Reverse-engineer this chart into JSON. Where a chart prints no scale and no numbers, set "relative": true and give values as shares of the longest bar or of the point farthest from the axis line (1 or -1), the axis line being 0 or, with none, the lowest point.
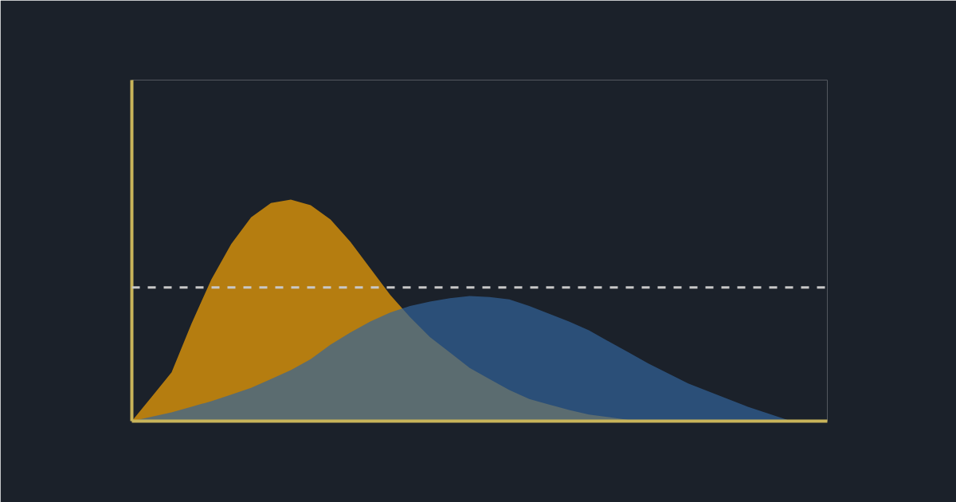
{
  "chart_data": {
    "type": "area",
    "relative": true,
    "categories": [
      null,
      null,
      null,
      null,
      null,
      null,
      null,
      null,
      null,
      null,
      null,
      null,
      null,
      null,
      null,
      null,
      null,
      null,
      null,
      null,
      null,
      null,
      null,
      null,
      null,
      null,
      null,
      null,
      null,
      null,
      null,
      null,
      null,
      null,
      null,
      null
    ],
    "series": [
      {
        "color": "#b57d10",
        "values": [
          0,
          0.11,
          0.22,
          0.44,
          0.64,
          0.8,
          0.92,
          0.985,
          1.0,
          0.975,
          0.91,
          0.81,
          0.69,
          0.57,
          0.47,
          0.38,
          0.31,
          0.24,
          0.19,
          0.14,
          0.1,
          0.075,
          0.05,
          0.03,
          0.018,
          0.005,
          0,
          0,
          0,
          0,
          0,
          0,
          0,
          0,
          0,
          0
        ]
      },
      {
        "color": "#32649b",
        "values": [
          0,
          0.02,
          0.04,
          0.065,
          0.09,
          0.12,
          0.15,
          0.19,
          0.23,
          0.28,
          0.345,
          0.4,
          0.45,
          0.49,
          0.52,
          0.54,
          0.555,
          0.565,
          0.56,
          0.55,
          0.52,
          0.485,
          0.45,
          0.41,
          0.36,
          0.31,
          0.26,
          0.215,
          0.17,
          0.135,
          0.1,
          0.065,
          0.035,
          0.005,
          0,
          0
        ]
      }
    ],
    "ref_lines": [
      {
        "axis": "y",
        "value": 0.604,
        "color": "#c8c8c8",
        "line_style": "dashed"
      }
    ]
  }
}
